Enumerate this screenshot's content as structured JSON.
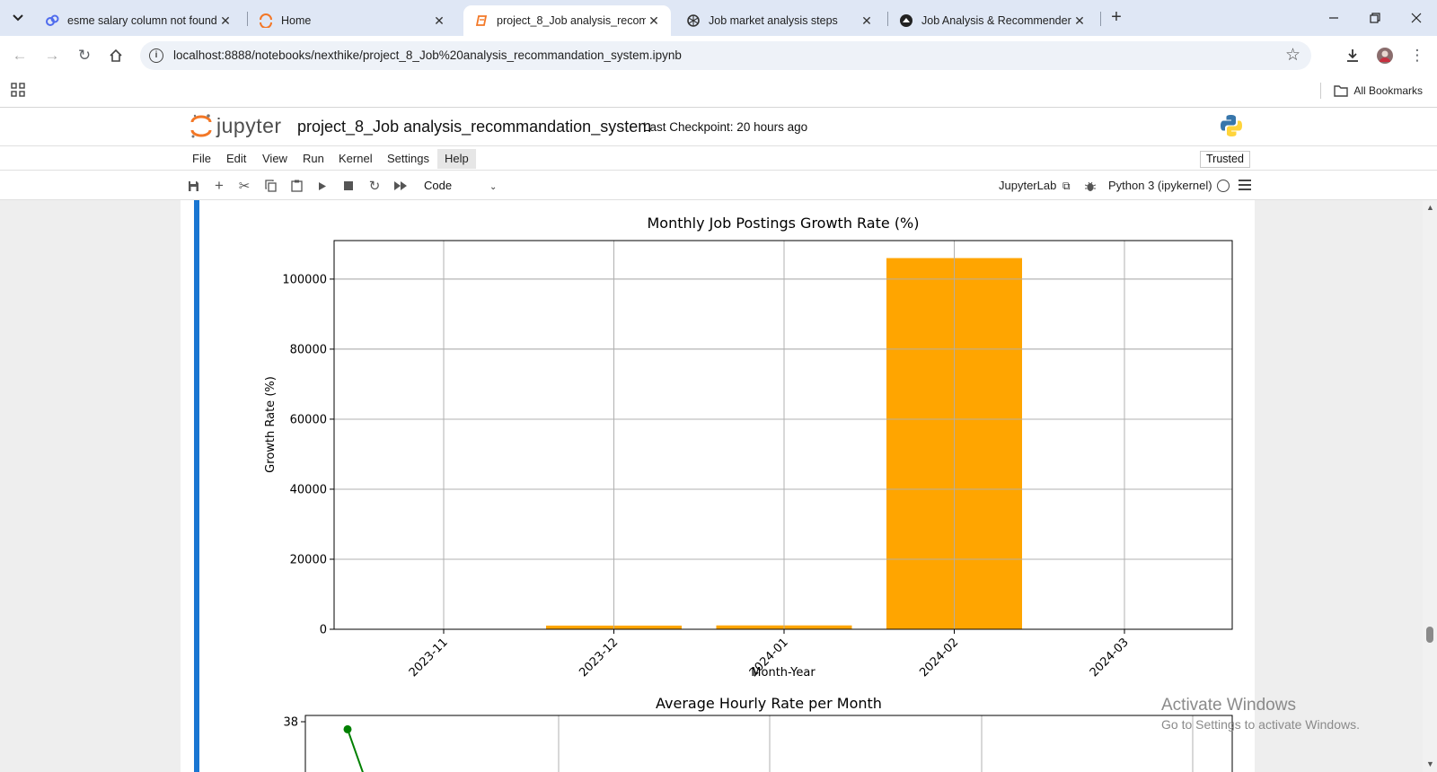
{
  "browser": {
    "tabs": [
      {
        "title": "esme salary column not found",
        "favicon": "chatbot-icon",
        "active": false
      },
      {
        "title": "Home",
        "favicon": "jupyter-icon",
        "active": false
      },
      {
        "title": "project_8_Job analysis_recomm",
        "favicon": "notebook-icon",
        "active": true
      },
      {
        "title": "Job market analysis steps",
        "favicon": "openai-icon",
        "active": false
      },
      {
        "title": "Job Analysis & Recommender",
        "favicon": "streamlit-icon",
        "active": false
      }
    ],
    "new_tab_label": "+",
    "url": "localhost:8888/notebooks/nexthike/project_8_Job%20analysis_recommandation_system.ipynb",
    "all_bookmarks_label": "All Bookmarks"
  },
  "jupyter": {
    "logo_text": "jupyter",
    "notebook_name": "project_8_Job analysis_recommandation_system",
    "checkpoint": "Last Checkpoint: 20 hours ago",
    "menu": [
      "File",
      "Edit",
      "View",
      "Run",
      "Kernel",
      "Settings",
      "Help"
    ],
    "highlighted_menu": "Help",
    "trusted_label": "Trusted",
    "cell_type": "Code",
    "jupyterlab_label": "JupyterLab",
    "kernel_label": "Python 3 (ipykernel)"
  },
  "chart_data": [
    {
      "type": "bar",
      "title": "Monthly Job Postings Growth Rate (%)",
      "xlabel": "Month-Year",
      "ylabel": "Growth Rate (%)",
      "categories": [
        "2023-11",
        "2023-12",
        "2024-01",
        "2024-02",
        "2024-03"
      ],
      "values": [
        0,
        1050,
        1100,
        106000,
        0
      ],
      "ylim": [
        0,
        111000
      ],
      "yticks": [
        0,
        20000,
        40000,
        60000,
        80000,
        100000
      ],
      "grid": true,
      "color": "#ffa500"
    },
    {
      "type": "line",
      "title": "Average Hourly Rate per Month",
      "yticks_visible": [
        38
      ],
      "series": [
        {
          "values": [
            37.7
          ]
        }
      ],
      "color": "#008000"
    }
  ],
  "os_watermark": {
    "line1": "Activate Windows",
    "line2": "Go to Settings to activate Windows."
  }
}
